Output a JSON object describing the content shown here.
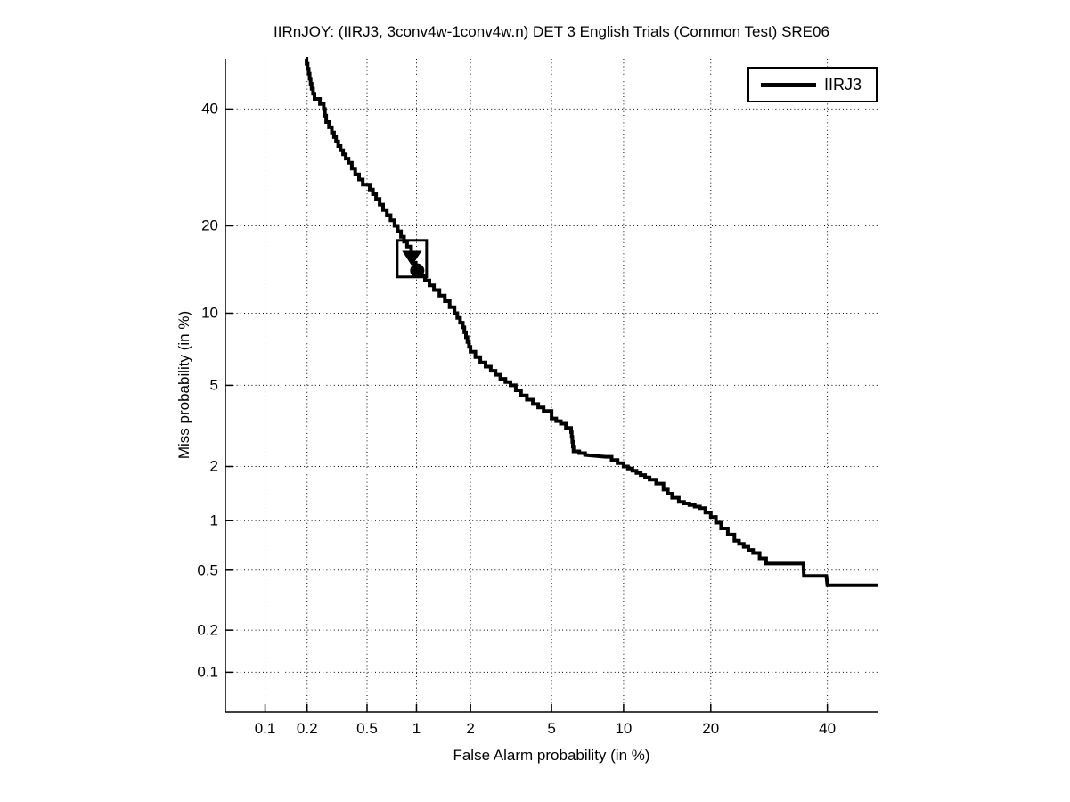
{
  "figure": {
    "title": "IIRnJOY: (IIRJ3, 3conv4w-1conv4w.n) DET 3 English Trials (Common Test) SRE06",
    "x_axis_label": "False Alarm probability (in %)",
    "y_axis_label": "Miss probability (in %)",
    "background_color": "#ffffff",
    "axis_color": "#000000",
    "grid_style": "dotted",
    "legend": {
      "position": "top-right",
      "entries": [
        {
          "label": "IIRJ3",
          "line_color": "#000000"
        }
      ]
    }
  },
  "chart_data": {
    "type": "line",
    "subtype": "DET-curve (normal-deviate / probit scale on both axes)",
    "title": "IIRnJOY: (IIRJ3, 3conv4w-1conv4w.n) DET 3 English Trials (Common Test) SRE06",
    "xlabel": "False Alarm probability (in %)",
    "ylabel": "Miss probability (in %)",
    "xlim": [
      0.05,
      50
    ],
    "ylim": [
      0.05,
      50
    ],
    "x_tick_values": [
      0.1,
      0.2,
      0.5,
      1,
      2,
      5,
      10,
      20,
      40
    ],
    "x_tick_labels": [
      "0.1",
      "0.2",
      "0.5",
      "1",
      "2",
      "5",
      "10",
      "20",
      "40"
    ],
    "y_tick_values": [
      0.1,
      0.2,
      0.5,
      1,
      2,
      5,
      10,
      20,
      40
    ],
    "y_tick_labels": [
      "0.1",
      "0.2",
      "0.5",
      "1",
      "2",
      "5",
      "10",
      "20",
      "40"
    ],
    "grid": "dotted-black-at-major-ticks",
    "legend_position": "top-right",
    "series": [
      {
        "name": "IIRJ3",
        "color": "#000000",
        "line_width": 4,
        "style": "staircase",
        "points_fa_miss_percent": [
          [
            0.195,
            50
          ],
          [
            0.205,
            47
          ],
          [
            0.215,
            44
          ],
          [
            0.225,
            42
          ],
          [
            0.245,
            41
          ],
          [
            0.26,
            40
          ],
          [
            0.27,
            37.5
          ],
          [
            0.295,
            35.5
          ],
          [
            0.325,
            33
          ],
          [
            0.35,
            31.5
          ],
          [
            0.38,
            30
          ],
          [
            0.42,
            28
          ],
          [
            0.47,
            26.3
          ],
          [
            0.52,
            25.5
          ],
          [
            0.57,
            24
          ],
          [
            0.63,
            22.3
          ],
          [
            0.7,
            20.8
          ],
          [
            0.74,
            20
          ],
          [
            0.81,
            18.5
          ],
          [
            0.88,
            17.2
          ],
          [
            0.93,
            16.2
          ],
          [
            0.96,
            15.2
          ],
          [
            1.02,
            14.2
          ],
          [
            1.12,
            13.2
          ],
          [
            1.26,
            12.2
          ],
          [
            1.45,
            11.1
          ],
          [
            1.64,
            10
          ],
          [
            1.82,
            8.8
          ],
          [
            2.0,
            7.0
          ],
          [
            2.25,
            6.3
          ],
          [
            2.55,
            5.8
          ],
          [
            2.85,
            5.35
          ],
          [
            3.2,
            5.0
          ],
          [
            3.6,
            4.5
          ],
          [
            4.1,
            4.1
          ],
          [
            4.6,
            3.8
          ],
          [
            5.0,
            3.5
          ],
          [
            5.5,
            3.3
          ],
          [
            6.1,
            3.0
          ],
          [
            6.25,
            2.4
          ],
          [
            7.0,
            2.3
          ],
          [
            8.5,
            2.25
          ],
          [
            10.0,
            2.0
          ],
          [
            10.8,
            1.9
          ],
          [
            11.6,
            1.8
          ],
          [
            12.5,
            1.7
          ],
          [
            13.2,
            1.62
          ],
          [
            14.0,
            1.5
          ],
          [
            15.0,
            1.35
          ],
          [
            15.8,
            1.28
          ],
          [
            18.5,
            1.18
          ],
          [
            20.0,
            1.05
          ],
          [
            21.5,
            0.9
          ],
          [
            23.5,
            0.76
          ],
          [
            26.5,
            0.64
          ],
          [
            28.7,
            0.55
          ],
          [
            35.4,
            0.55
          ],
          [
            35.5,
            0.46
          ],
          [
            39.8,
            0.46
          ],
          [
            40.0,
            0.4
          ],
          [
            50.0,
            0.4
          ]
        ]
      }
    ],
    "markers": [
      {
        "type": "square-outline",
        "fa_percent": 0.94,
        "miss_percent": 15.7
      },
      {
        "type": "filled-triangle-down",
        "fa_percent": 0.94,
        "miss_percent": 15.9
      },
      {
        "type": "filled-circle",
        "fa_percent": 1.01,
        "miss_percent": 14.3
      }
    ]
  },
  "layout_note_visible_numbers_only": true
}
